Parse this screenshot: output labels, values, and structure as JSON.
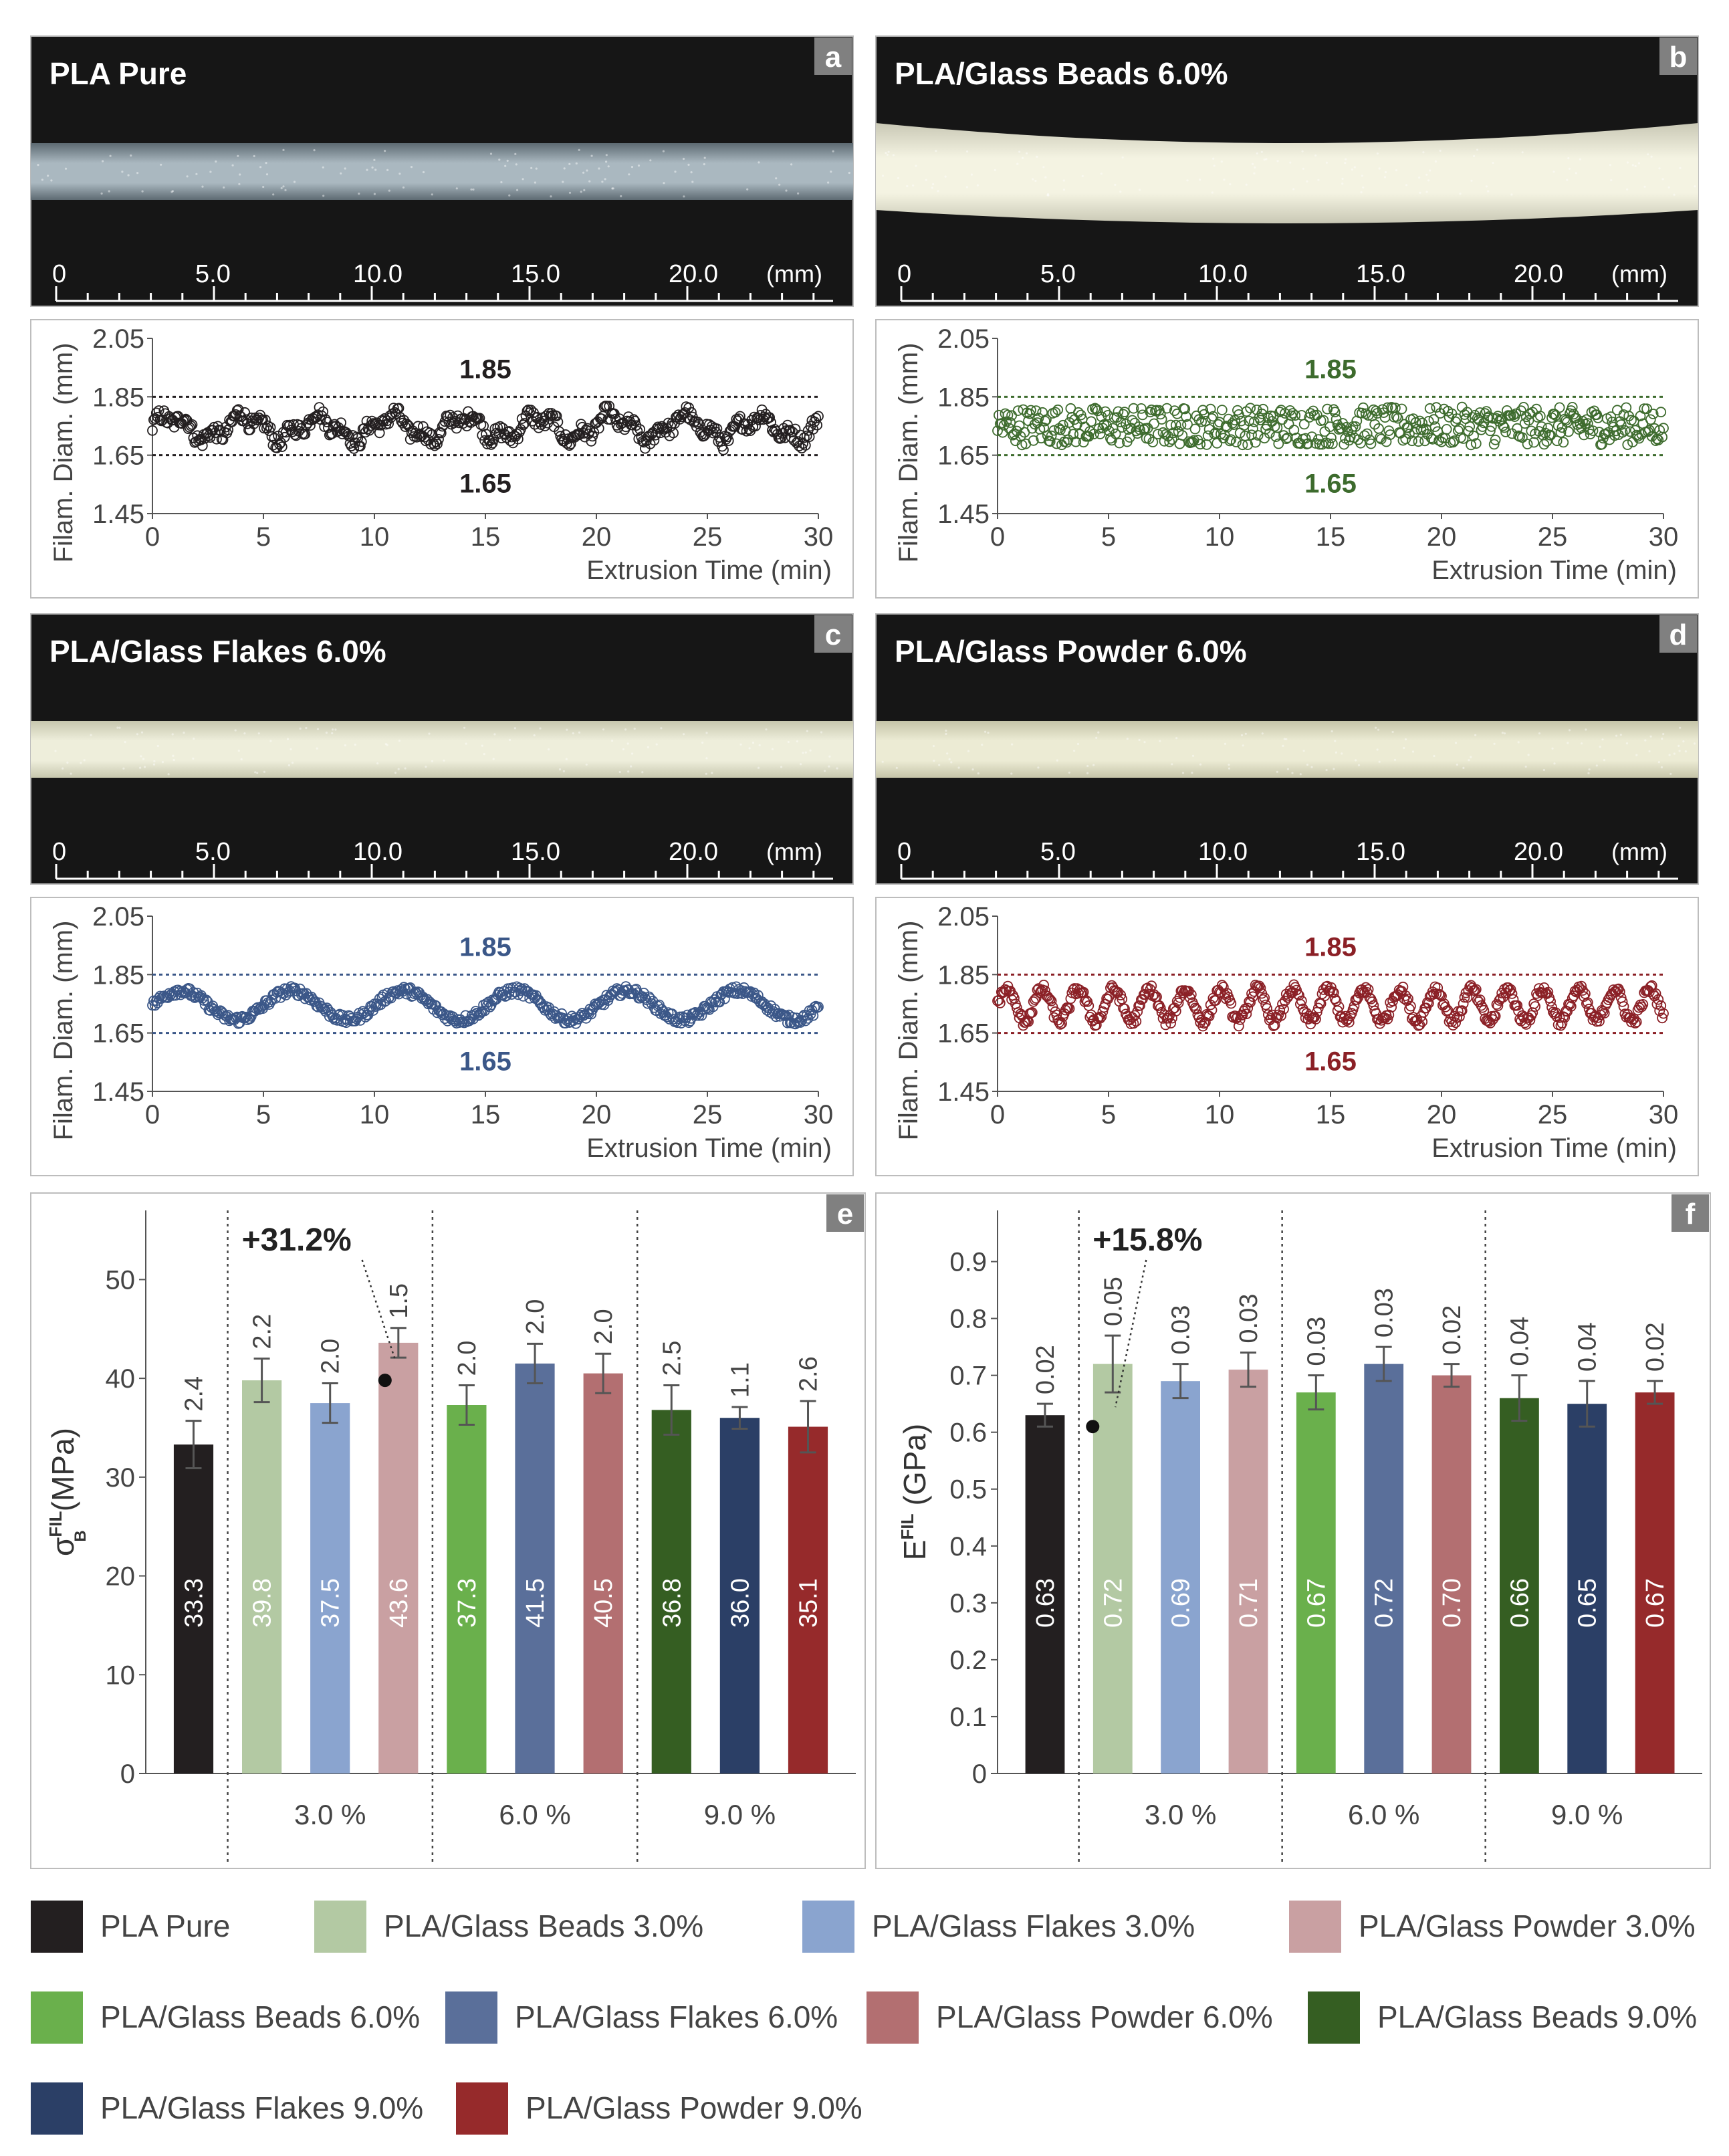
{
  "panels": [
    {
      "letter": "a",
      "title": "PLA Pure",
      "color": "#231f20",
      "photo": {
        "top": "#2b2b2b",
        "mid": "#aab8c0",
        "edge": "#5d6a72"
      },
      "kind": "wavy"
    },
    {
      "letter": "b",
      "title": "PLA/Glass Beads 6.0%",
      "color": "#3d6b2d",
      "photo": {
        "top": "#e8e8d8",
        "mid": "#f4f3e2",
        "edge": "#c9c8b5"
      },
      "kind": "noisy"
    },
    {
      "letter": "c",
      "title": "PLA/Glass Flakes 6.0%",
      "color": "#3b5788",
      "photo": {
        "top": "#e4e4cf",
        "mid": "#eeeedb",
        "edge": "#c7c7ae"
      },
      "kind": "wave"
    },
    {
      "letter": "d",
      "title": "PLA/Glass Powder 6.0%",
      "color": "#8b2026",
      "photo": {
        "top": "#e3e3c9",
        "mid": "#ecebd4",
        "edge": "#c5c4a8"
      },
      "kind": "fastwave"
    }
  ],
  "ruler": {
    "ticks": [
      "0",
      "5.0",
      "10.0",
      "15.0",
      "20.0"
    ],
    "unit": "(mm)"
  },
  "scatter": {
    "ylabel": "Filam. Diam. (mm)",
    "xlabel": "Extrusion Time (min)",
    "yticks": [
      "2.05",
      "1.85",
      "1.65",
      "1.45"
    ],
    "xticks": [
      "0",
      "5",
      "10",
      "15",
      "20",
      "25",
      "30"
    ],
    "upper": "1.85",
    "lower": "1.65",
    "ylim": [
      1.45,
      2.05
    ],
    "xlim": [
      0,
      30
    ]
  },
  "chart_data": [
    {
      "type": "bar",
      "panel": "e",
      "ylabel_main": "σ",
      "ylabel_sup": "FIL",
      "ylabel_sub": "B",
      "ylabel_unit": "(MPa)",
      "ylim": [
        0,
        57
      ],
      "yticks": [
        0,
        10,
        20,
        30,
        40,
        50
      ],
      "groups": [
        "3.0 %",
        "6.0 %",
        "9.0 %"
      ],
      "annotation": "+31.2%",
      "annotation_series": "PLA/Glass Powder 3.0%",
      "series": [
        {
          "name": "PLA Pure",
          "value": 33.3,
          "value_label": "33.3",
          "err": 2.4,
          "err_label": "2.4"
        },
        {
          "name": "PLA/Glass Beads 3.0%",
          "value": 39.8,
          "value_label": "39.8",
          "err": 2.2,
          "err_label": "2.2"
        },
        {
          "name": "PLA/Glass Flakes 3.0%",
          "value": 37.5,
          "value_label": "37.5",
          "err": 2.0,
          "err_label": "2.0"
        },
        {
          "name": "PLA/Glass Powder 3.0%",
          "value": 43.6,
          "value_label": "43.6",
          "err": 1.5,
          "err_label": "1.5"
        },
        {
          "name": "PLA/Glass Beads 6.0%",
          "value": 37.3,
          "value_label": "37.3",
          "err": 2.0,
          "err_label": "2.0"
        },
        {
          "name": "PLA/Glass Flakes 6.0%",
          "value": 41.5,
          "value_label": "41.5",
          "err": 2.0,
          "err_label": "2.0"
        },
        {
          "name": "PLA/Glass Powder 6.0%",
          "value": 40.5,
          "value_label": "40.5",
          "err": 2.0,
          "err_label": "2.0"
        },
        {
          "name": "PLA/Glass Beads 9.0%",
          "value": 36.8,
          "value_label": "36.8",
          "err": 2.5,
          "err_label": "2.5"
        },
        {
          "name": "PLA/Glass Flakes 9.0%",
          "value": 36.0,
          "value_label": "36.0",
          "err": 1.1,
          "err_label": "1.1"
        },
        {
          "name": "PLA/Glass Powder 9.0%",
          "value": 35.1,
          "value_label": "35.1",
          "err": 2.6,
          "err_label": "2.6"
        }
      ]
    },
    {
      "type": "bar",
      "panel": "f",
      "ylabel_main": "E",
      "ylabel_sup": "FIL",
      "ylabel_sub": "",
      "ylabel_unit": "(GPa)",
      "ylim": [
        0,
        0.99
      ],
      "yticks": [
        0,
        0.1,
        0.2,
        0.3,
        0.4,
        0.5,
        0.6,
        0.7,
        0.8,
        0.9
      ],
      "groups": [
        "3.0 %",
        "6.0 %",
        "9.0 %"
      ],
      "annotation": "+15.8%",
      "annotation_series": "PLA/Glass Beads 3.0%",
      "series": [
        {
          "name": "PLA Pure",
          "value": 0.63,
          "value_label": "0.63",
          "err": 0.02,
          "err_label": "0.02"
        },
        {
          "name": "PLA/Glass Beads 3.0%",
          "value": 0.72,
          "value_label": "0.72",
          "err": 0.05,
          "err_label": "0.05"
        },
        {
          "name": "PLA/Glass Flakes 3.0%",
          "value": 0.69,
          "value_label": "0.69",
          "err": 0.03,
          "err_label": "0.03"
        },
        {
          "name": "PLA/Glass Powder 3.0%",
          "value": 0.71,
          "value_label": "0.71",
          "err": 0.03,
          "err_label": "0.03"
        },
        {
          "name": "PLA/Glass Beads 6.0%",
          "value": 0.67,
          "value_label": "0.67",
          "err": 0.03,
          "err_label": "0.03"
        },
        {
          "name": "PLA/Glass Flakes 6.0%",
          "value": 0.72,
          "value_label": "0.72",
          "err": 0.03,
          "err_label": "0.03"
        },
        {
          "name": "PLA/Glass Powder 6.0%",
          "value": 0.7,
          "value_label": "0.70",
          "err": 0.02,
          "err_label": "0.02"
        },
        {
          "name": "PLA/Glass Beads 9.0%",
          "value": 0.66,
          "value_label": "0.66",
          "err": 0.04,
          "err_label": "0.04"
        },
        {
          "name": "PLA/Glass Flakes 9.0%",
          "value": 0.65,
          "value_label": "0.65",
          "err": 0.04,
          "err_label": "0.04"
        },
        {
          "name": "PLA/Glass Powder 9.0%",
          "value": 0.67,
          "value_label": "0.67",
          "err": 0.02,
          "err_label": "0.02"
        }
      ]
    }
  ],
  "legend": [
    {
      "name": "PLA Pure",
      "color": "#231f20"
    },
    {
      "name": "PLA/Glass Beads 3.0%",
      "color": "#b3c9a3"
    },
    {
      "name": "PLA/Glass Flakes 3.0%",
      "color": "#8aa4cf"
    },
    {
      "name": "PLA/Glass Powder 3.0%",
      "color": "#c9a0a2"
    },
    {
      "name": "PLA/Glass Beads 6.0%",
      "color": "#6ab04c"
    },
    {
      "name": "PLA/Glass Flakes 6.0%",
      "color": "#5a6f9a"
    },
    {
      "name": "PLA/Glass Powder 6.0%",
      "color": "#b36f71"
    },
    {
      "name": "PLA/Glass Beads 9.0%",
      "color": "#355e22"
    },
    {
      "name": "PLA/Glass Flakes 9.0%",
      "color": "#2b3f66"
    },
    {
      "name": "PLA/Glass Powder 9.0%",
      "color": "#962a2b"
    }
  ]
}
